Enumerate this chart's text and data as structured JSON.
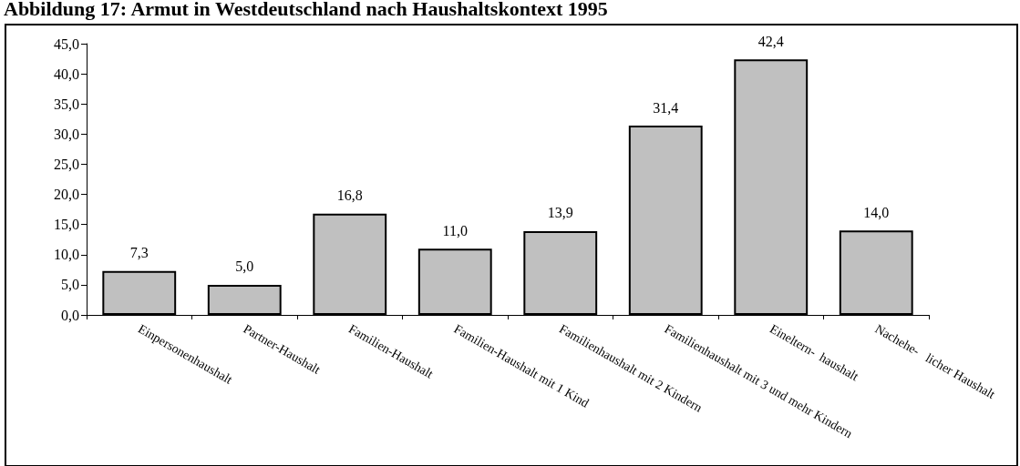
{
  "chart_data": {
    "type": "bar",
    "title": "Abbildung 17: Armut in Westdeutschland nach Haushaltskontext 1995",
    "categories": [
      "Einpersonenhaushalt",
      "Partner-Haushalt",
      "Familien-Haushalt",
      "Familien-Haushalt mit 1 Kind",
      "Familienhaushalt mit 2 Kindern",
      "Familienhaushalt mit 3 und mehr Kindern",
      "Eineltern-  haushalt",
      "Nachehe-   licher Haushalt"
    ],
    "values": [
      7.3,
      5.0,
      16.8,
      11.0,
      13.9,
      31.4,
      42.4,
      14.0
    ],
    "value_labels": [
      "7,3",
      "5,0",
      "16,8",
      "11,0",
      "13,9",
      "31,4",
      "42,4",
      "14,0"
    ],
    "color": "#c0c0c0",
    "ylim": [
      0,
      45
    ],
    "yticks": [
      {
        "value": 0,
        "label": "0,0"
      },
      {
        "value": 5,
        "label": "5,0"
      },
      {
        "value": 10,
        "label": "10,0"
      },
      {
        "value": 15,
        "label": "15,0"
      },
      {
        "value": 20,
        "label": "20,0"
      },
      {
        "value": 25,
        "label": "25,0"
      },
      {
        "value": 30,
        "label": "30,0"
      },
      {
        "value": 35,
        "label": "35,0"
      },
      {
        "value": 40,
        "label": "40,0"
      },
      {
        "value": 45,
        "label": "45,0"
      }
    ],
    "grid": false
  }
}
